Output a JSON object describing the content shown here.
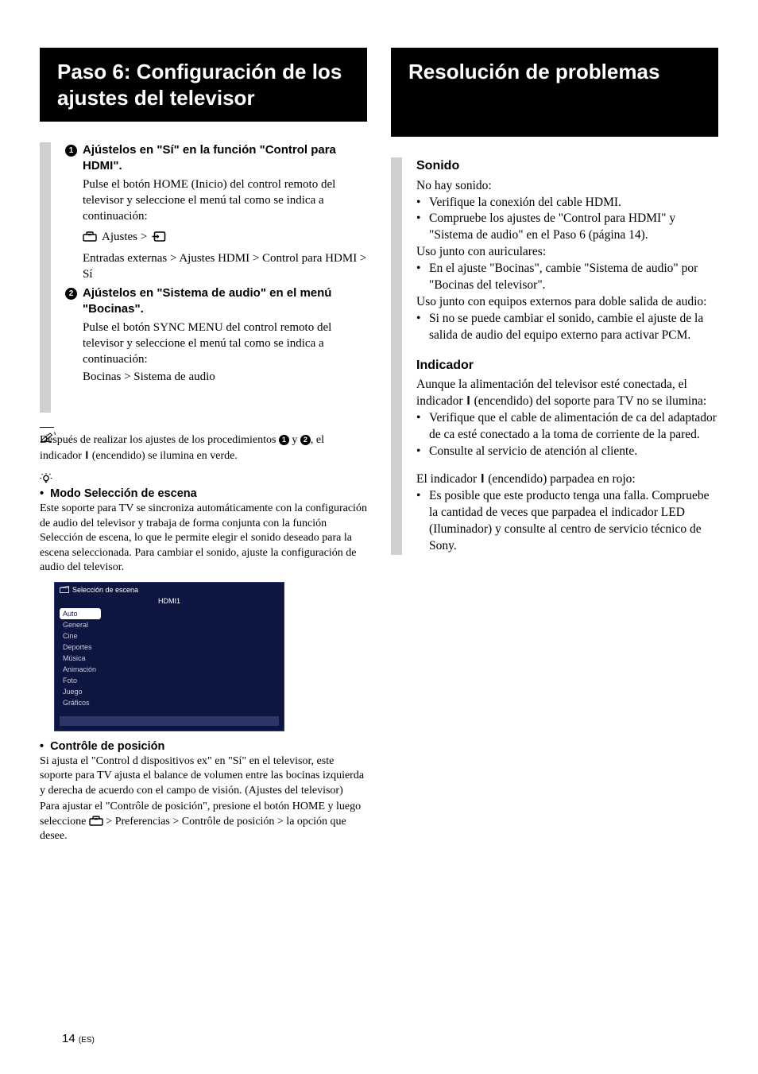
{
  "left": {
    "title": "Paso 6: Configuración de los ajustes del televisor",
    "step1": {
      "num": "1",
      "title": "Ajústelos en \"Sí\" en la función \"Control para HDMI\".",
      "text": "Pulse el botón HOME (Inicio) del control remoto del televisor y seleccione el menú tal como se indica a continuación:",
      "path_a": "Ajustes >",
      "path_b": "Entradas externas > Ajustes HDMI > Control para HDMI > Sí"
    },
    "step2": {
      "num": "2",
      "title": "Ajústelos en \"Sistema de audio\" en el menú \"Bocinas\".",
      "text": "Pulse el botón SYNC MENU del control remoto del televisor y seleccione el menú tal como se indica a continuación:",
      "path": "Bocinas > Sistema de audio"
    },
    "note_a": "Después de realizar los ajustes de los procedimientos",
    "note_b": "y",
    "note_c": ", el indicador",
    "note_d": "(encendido) se ilumina en verde.",
    "tip1_title": "Modo Selección de escena",
    "tip1_body": "Este soporte para TV se sincroniza automáticamente con la configuración de audio del televisor y trabaja de forma conjunta con la función Selección de escena, lo que le permite elegir el sonido deseado para la escena seleccionada. Para cambiar el sonido, ajuste la configuración de audio del televisor.",
    "scene": {
      "title": "Selección de escena",
      "hdmi": "HDMI1",
      "items": [
        "Auto",
        "General",
        "Cine",
        "Deportes",
        "Música",
        "Animación",
        "Foto",
        "Juego",
        "Gráficos"
      ],
      "selected_index": 0,
      "bg_color": "#0c1640",
      "text_color": "#c8cde4",
      "selected_bg": "#ffffff",
      "selected_fg": "#0c1640"
    },
    "tip2_title": "Contrôle de posición",
    "tip2_body": "Si ajusta el \"Control d dispositivos ex\" en \"Sí\" en el televisor, este soporte para TV ajusta el balance de volumen entre las bocinas izquierda y derecha de acuerdo con el campo de visión. (Ajustes del televisor)",
    "tip2_body2a": "Para ajustar el \"Contrôle de posición\", presione el botón HOME y luego seleccione",
    "tip2_body2b": "> Preferencias > Contrôle de posición > la opción que desee."
  },
  "right": {
    "title": "Resolución de problemas",
    "sonido": {
      "heading": "Sonido",
      "a": "No hay sonido:",
      "a_b1": "Verifique la conexión del cable HDMI.",
      "a_b2": "Compruebe los ajustes de \"Control para HDMI\" y \"Sistema de audio\" en el Paso 6 (página 14).",
      "b": "Uso junto con auriculares:",
      "b_b1": "En el ajuste \"Bocinas\", cambie \"Sistema de audio\" por \"Bocinas del televisor\".",
      "c": "Uso junto con equipos externos para doble salida de audio:",
      "c_b1": "Si no se puede cambiar el sonido, cambie el ajuste de la salida de audio del equipo externo para activar PCM."
    },
    "indicador": {
      "heading": "Indicador",
      "a1": "Aunque la alimentación del televisor esté conectada, el indicador",
      "a2": "(encendido) del soporte para TV no se ilumina:",
      "a_b1": "Verifique que el cable de alimentación de ca del adaptador de ca esté conectado a la toma de corriente de la pared.",
      "a_b2": "Consulte al servicio de atención al cliente.",
      "b1": "El indicador",
      "b2": "(encendido) parpadea en rojo:",
      "b_b1": "Es posible que este producto tenga una falla. Compruebe la cantidad de veces que parpadea el indicador LED (Iluminador) y consulte al centro de servicio técnico de Sony."
    }
  },
  "footer": {
    "page": "14",
    "lang": "(ES)"
  },
  "colors": {
    "title_bg": "#000000",
    "title_fg": "#ffffff",
    "stub": "#cfcfcf"
  }
}
